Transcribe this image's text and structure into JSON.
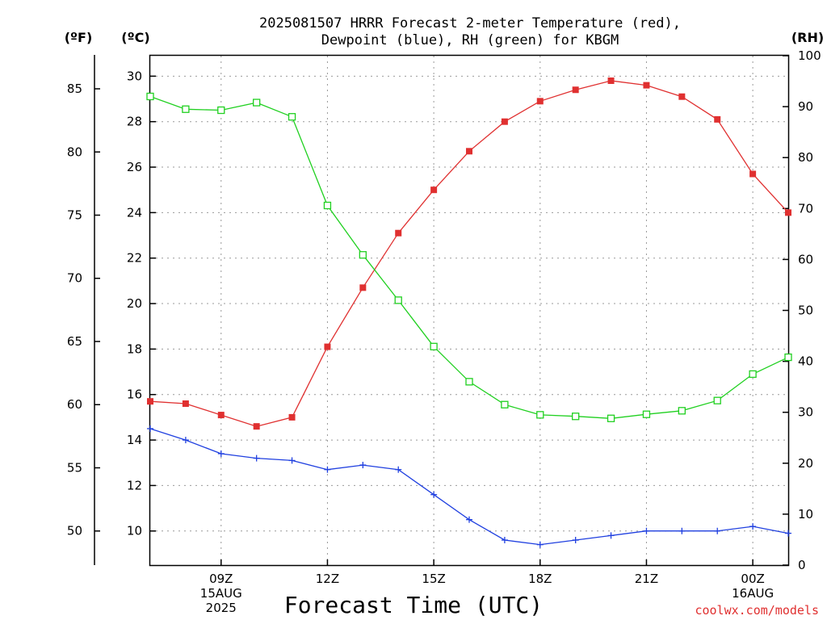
{
  "chart_data": {
    "type": "line",
    "title_line1": "2025081507 HRRR Forecast 2-meter Temperature (red),",
    "title_line2": "Dewpoint (blue), RH (green) for KBGM",
    "unit_left_f": "(ºF)",
    "unit_left_c": "(ºC)",
    "unit_right": "(RH)",
    "xlabel": "Forecast Time (UTC)",
    "credit": "coolwx.com/models",
    "x_hours": [
      7,
      8,
      9,
      10,
      11,
      12,
      13,
      14,
      15,
      16,
      17,
      18,
      19,
      20,
      21,
      22,
      23,
      24,
      25
    ],
    "x_range": [
      7,
      25
    ],
    "x_ticks": [
      {
        "hour": 9,
        "lines": [
          "09Z",
          "15AUG",
          "2025"
        ]
      },
      {
        "hour": 12,
        "lines": [
          "12Z"
        ]
      },
      {
        "hour": 15,
        "lines": [
          "15Z"
        ]
      },
      {
        "hour": 18,
        "lines": [
          "18Z"
        ]
      },
      {
        "hour": 21,
        "lines": [
          "21Z"
        ]
      },
      {
        "hour": 24,
        "lines": [
          "00Z",
          "16AUG"
        ]
      }
    ],
    "celsius_range": [
      8.5,
      30.9
    ],
    "celsius_ticks": [
      "10",
      "12",
      "14",
      "16",
      "18",
      "20",
      "22",
      "24",
      "26",
      "28",
      "30"
    ],
    "fahrenheit_ticks": [
      "50",
      "55",
      "60",
      "65",
      "70",
      "75",
      "80",
      "85"
    ],
    "rh_range": [
      0,
      100
    ],
    "rh_ticks": [
      "0",
      "10",
      "20",
      "30",
      "40",
      "50",
      "60",
      "70",
      "80",
      "90",
      "100"
    ],
    "series": [
      {
        "key": "temperature",
        "color": "#e03030",
        "marker": "filled-square",
        "axis": "celsius",
        "values": [
          15.7,
          15.6,
          15.1,
          14.6,
          15.0,
          18.1,
          20.7,
          23.1,
          25.0,
          26.7,
          28.0,
          28.9,
          29.4,
          29.8,
          29.6,
          29.1,
          28.1,
          25.7,
          24.0
        ]
      },
      {
        "key": "dewpoint",
        "color": "#2040e0",
        "marker": "plus",
        "axis": "celsius",
        "values": [
          14.5,
          14.0,
          13.4,
          13.2,
          13.1,
          12.7,
          12.9,
          12.7,
          11.6,
          10.5,
          9.6,
          9.4,
          9.6,
          9.8,
          10.0,
          10.0,
          10.0,
          10.2,
          9.9
        ]
      },
      {
        "key": "rh",
        "color": "#20d020",
        "marker": "open-square",
        "axis": "rh",
        "values": [
          92.0,
          89.5,
          89.3,
          90.8,
          88.0,
          70.6,
          60.9,
          52.0,
          42.9,
          36.0,
          31.5,
          29.5,
          29.2,
          28.8,
          29.6,
          30.3,
          32.3,
          37.5,
          40.8
        ]
      }
    ]
  }
}
